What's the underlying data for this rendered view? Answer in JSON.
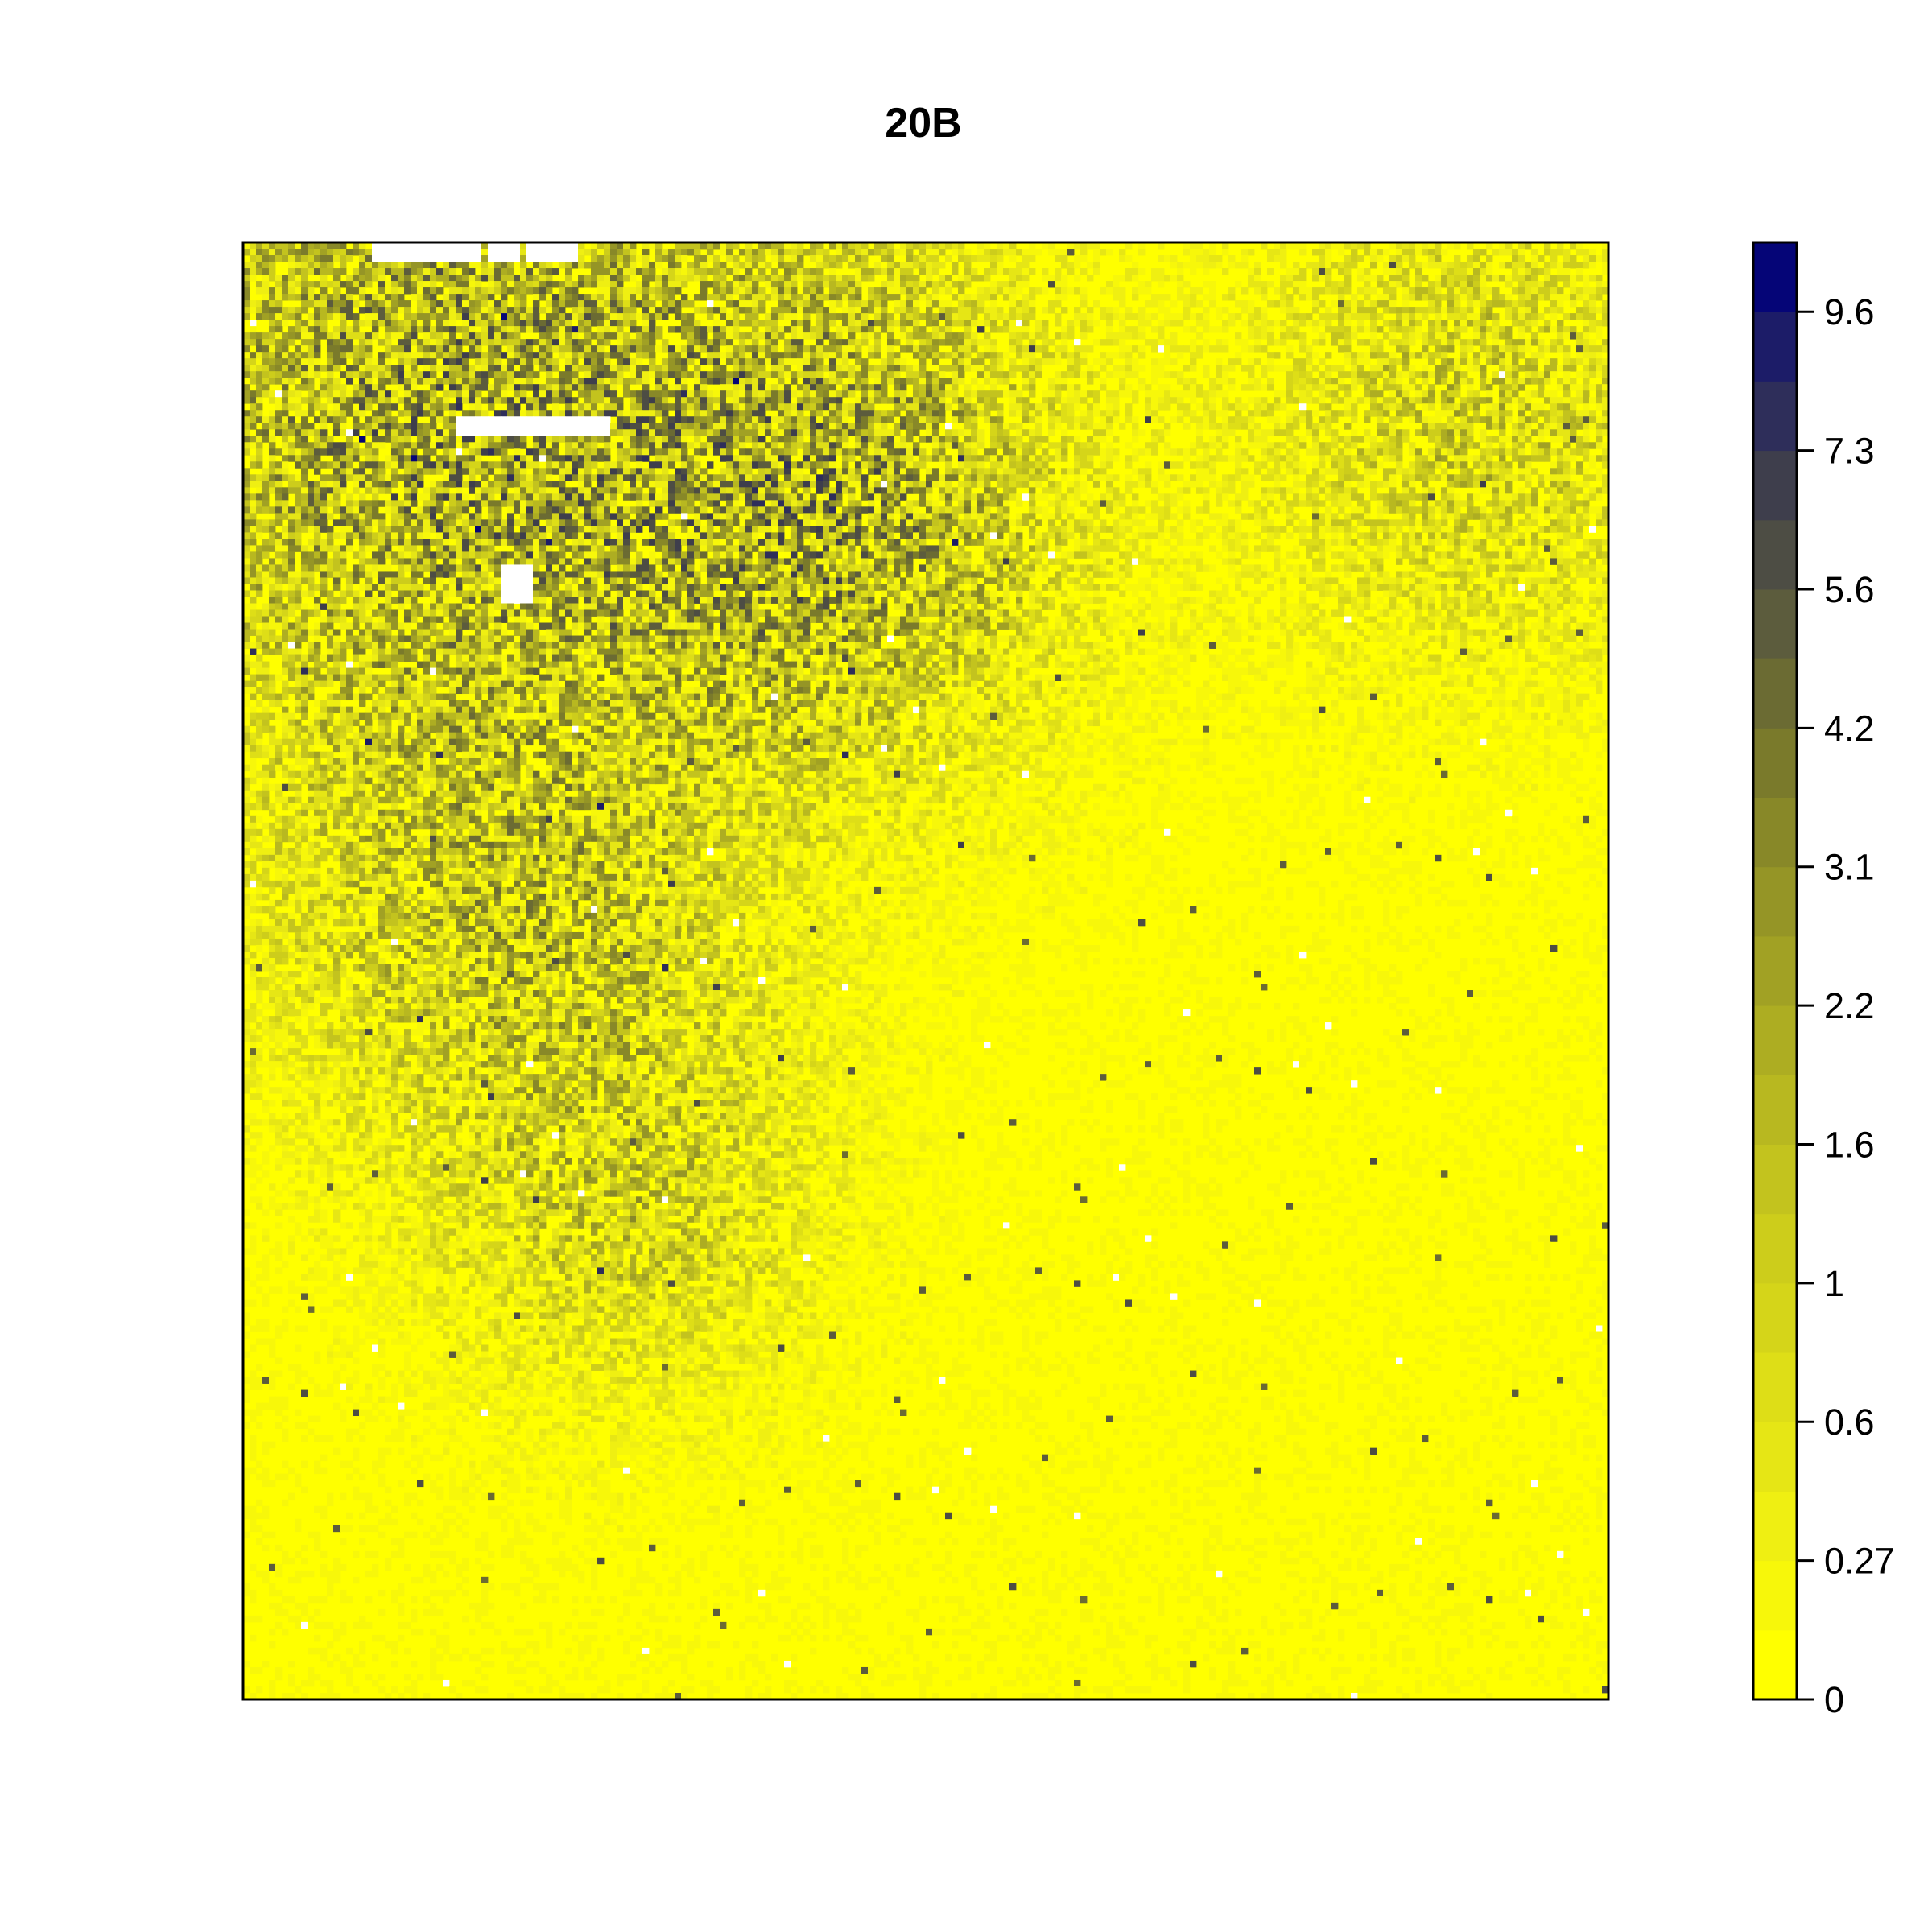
{
  "chart_data": {
    "type": "heatmap",
    "title": "20B",
    "xlabel": "",
    "ylabel": "",
    "axes_visible": false,
    "value_range": [
      0,
      10.3
    ],
    "colorbar": {
      "position": "right",
      "low_color": "#ffff00",
      "high_color": "#000066",
      "tick_labels": [
        "0",
        "0.27",
        "0.6",
        "1",
        "1.6",
        "2.2",
        "3.1",
        "4.2",
        "5.6",
        "7.3",
        "9.6"
      ],
      "tick_values": [
        0,
        0.27,
        0.6,
        1,
        1.6,
        2.2,
        3.1,
        4.2,
        5.6,
        7.3,
        9.6
      ],
      "level_breaks": [
        0,
        0.12,
        0.27,
        0.42,
        0.6,
        0.8,
        1.0,
        1.25,
        1.6,
        1.9,
        2.2,
        2.6,
        3.1,
        3.6,
        4.2,
        4.9,
        5.6,
        6.4,
        7.3,
        8.3,
        9.6,
        10.3
      ],
      "level_colors": [
        "#ffff00",
        "#f7f70a",
        "#efef12",
        "#e6e615",
        "#dede17",
        "#d5d519",
        "#cdcd1b",
        "#c3c31e",
        "#b8b820",
        "#adad22",
        "#a1a124",
        "#959526",
        "#888828",
        "#7a7a2b",
        "#6b6b33",
        "#5c5c3d",
        "#4d4d44",
        "#3e3e4c",
        "#2e2e5a",
        "#1c1c68",
        "#050577"
      ]
    },
    "field": {
      "background_value": 0.1,
      "hotspots": [
        {
          "x": 0.15,
          "y": 0.12,
          "value": 3.2,
          "spread": 0.2
        },
        {
          "x": 0.42,
          "y": 0.18,
          "value": 3.0,
          "spread": 0.15
        },
        {
          "x": 0.2,
          "y": 0.45,
          "value": 1.8,
          "spread": 0.15
        },
        {
          "x": 0.28,
          "y": 0.65,
          "value": 1.2,
          "spread": 0.12
        },
        {
          "x": 0.9,
          "y": 0.12,
          "value": 1.2,
          "spread": 0.14
        }
      ],
      "missing_cells": [
        [
          0.095,
          0.0,
          0.078,
          0.014
        ],
        [
          0.18,
          0.0,
          0.022,
          0.014
        ],
        [
          0.207,
          0.0,
          0.04,
          0.014
        ],
        [
          0.158,
          0.119,
          0.11,
          0.014
        ],
        [
          0.19,
          0.222,
          0.024,
          0.024
        ]
      ]
    }
  }
}
